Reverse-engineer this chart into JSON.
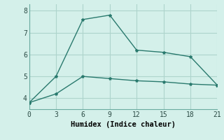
{
  "line1_x": [
    0,
    3,
    6,
    9,
    12,
    15,
    18,
    21
  ],
  "line1_y": [
    3.8,
    5.0,
    7.6,
    7.8,
    6.2,
    6.1,
    5.9,
    4.6
  ],
  "line2_x": [
    0,
    3,
    6,
    9,
    12,
    15,
    18,
    21
  ],
  "line2_y": [
    3.8,
    4.2,
    5.0,
    4.9,
    4.8,
    4.75,
    4.65,
    4.6
  ],
  "line_color": "#2a7a6e",
  "bg_color": "#d4f0ea",
  "grid_color": "#aed4cc",
  "xlabel": "Humidex (Indice chaleur)",
  "xlim": [
    0,
    21
  ],
  "ylim": [
    3.5,
    8.3
  ],
  "xticks": [
    0,
    3,
    6,
    9,
    12,
    15,
    18,
    21
  ],
  "yticks": [
    4,
    5,
    6,
    7,
    8
  ],
  "marker": "*",
  "markersize": 3,
  "linewidth": 1.0,
  "tick_fontsize": 7,
  "xlabel_fontsize": 7.5
}
